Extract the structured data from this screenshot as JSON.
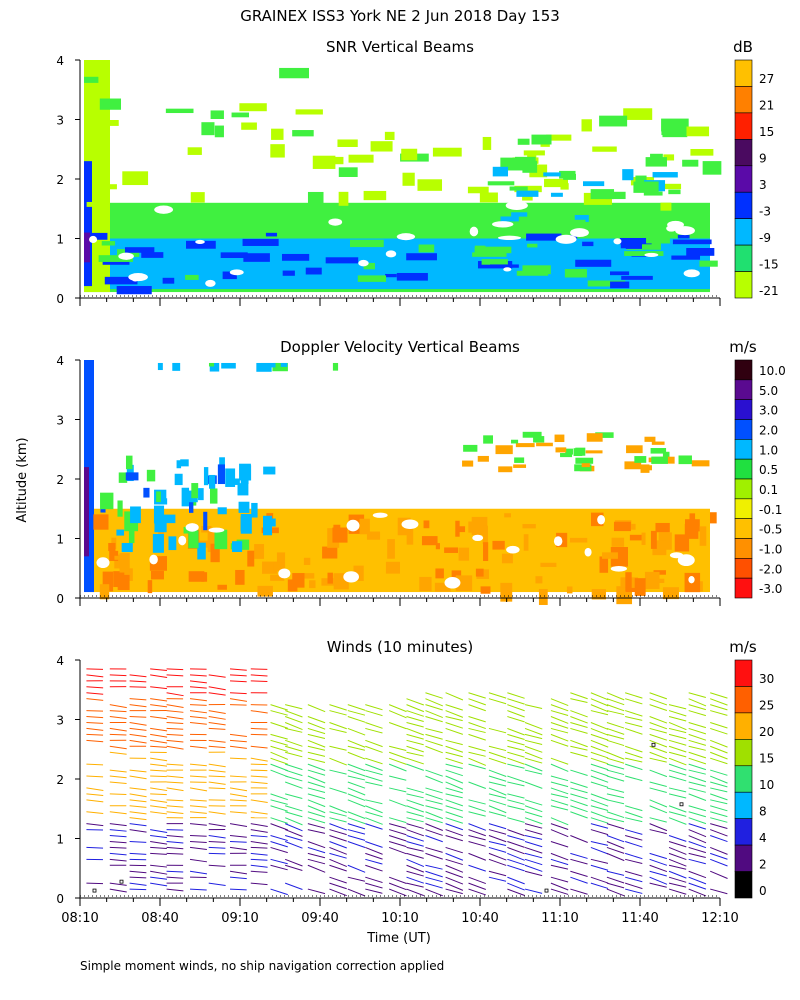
{
  "figure": {
    "title": "GRAINEX ISS3 York NE   2 Jun 2018 Day 153",
    "footnote": "Simple moment winds, no ship navigation correction applied",
    "ylabel": "Altitude (km)",
    "xlabel": "Time (UT)"
  },
  "chart_data": [
    {
      "type": "heatmap",
      "title": "SNR Vertical Beams",
      "unit": "dB",
      "x_ticks": [
        "08:10",
        "08:40",
        "09:10",
        "09:40",
        "10:10",
        "10:40",
        "11:10",
        "11:40",
        "12:10"
      ],
      "y_ticks": [
        "0",
        "1",
        "2",
        "3",
        "4"
      ],
      "ylim": [
        0,
        4
      ],
      "colorbar": {
        "labels": [
          "27",
          "21",
          "15",
          "9",
          "3",
          "-3",
          "-9",
          "-15",
          "-21"
        ],
        "colors": [
          "#ffc000",
          "#ff8000",
          "#ff2000",
          "#4a0a60",
          "#5a0aa8",
          "#0030ff",
          "#00b8ff",
          "#20e070",
          "#b8ff00"
        ]
      },
      "palette": {
        "low": "#b8ff00",
        "mid": "#40f040",
        "cyan": "#00b8ff",
        "blue": "#0030ff",
        "deep": "#5a0aa8"
      }
    },
    {
      "type": "heatmap",
      "title": "Doppler Velocity Vertical Beams",
      "unit": "m/s",
      "x_ticks": [
        "08:10",
        "08:40",
        "09:10",
        "09:40",
        "10:10",
        "10:40",
        "11:10",
        "11:40",
        "12:10"
      ],
      "y_ticks": [
        "0",
        "1",
        "2",
        "3",
        "4"
      ],
      "ylim": [
        0,
        4
      ],
      "colorbar": {
        "labels": [
          "10.0",
          "5.0",
          "3.0",
          "2.0",
          "1.0",
          "0.5",
          "0.1",
          "-0.1",
          "-0.5",
          "-1.0",
          "-2.0",
          "-3.0"
        ],
        "colors": [
          "#300010",
          "#5a0a90",
          "#2a10d0",
          "#0050ff",
          "#00b8ff",
          "#20e040",
          "#a0f000",
          "#f0f000",
          "#ffc000",
          "#ff9000",
          "#ff5000",
          "#ff1010"
        ]
      },
      "palette": {
        "orange": "#ffa500",
        "lorange": "#ffc000",
        "dorange": "#ff8000",
        "cyan": "#00b8ff",
        "blue": "#0050ff",
        "green": "#40f040"
      }
    },
    {
      "type": "scatter",
      "title": "Winds (10 minutes)",
      "unit": "m/s",
      "x_ticks": [
        "08:10",
        "08:40",
        "09:10",
        "09:40",
        "10:10",
        "10:40",
        "11:10",
        "11:40",
        "12:10"
      ],
      "y_ticks": [
        "0",
        "1",
        "2",
        "3",
        "4"
      ],
      "ylim": [
        0,
        4
      ],
      "colorbar": {
        "labels": [
          "30",
          "25",
          "20",
          "15",
          "10",
          "8",
          "4",
          "2",
          "0"
        ],
        "colors": [
          "#ff1010",
          "#ff6000",
          "#ffb000",
          "#a0e000",
          "#30e070",
          "#00b8ff",
          "#2020e0",
          "#500a80",
          "#000000"
        ]
      }
    }
  ]
}
